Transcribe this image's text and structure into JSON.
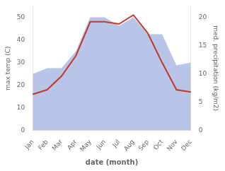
{
  "chart_data": {
    "type": "line",
    "xlabel": "date (month)",
    "ylabel": "max temp (C)",
    "y2label": "med. precipitation (kg/m2)",
    "categories": [
      "Jan",
      "Feb",
      "Mar",
      "Apr",
      "May",
      "Jun",
      "Jul",
      "Aug",
      "Sep",
      "Oct",
      "Nov",
      "Dec"
    ],
    "series": [
      {
        "type": "area",
        "color": "#b8c4e8",
        "axis": "y2",
        "values": [
          10,
          11,
          11,
          14,
          20,
          20,
          18.5,
          20,
          17,
          17,
          11.5,
          12
        ]
      },
      {
        "type": "line",
        "color": "#c0392b",
        "values": [
          16,
          18,
          24,
          33,
          48,
          48,
          47,
          51,
          43,
          30,
          18,
          17
        ]
      }
    ],
    "ylim": [
      0,
      55
    ],
    "yticks": [
      0,
      10,
      20,
      30,
      40,
      50
    ],
    "y2lim": [
      0,
      22
    ],
    "y2ticks": [
      0,
      5,
      10,
      15,
      20
    ],
    "grid": false
  }
}
